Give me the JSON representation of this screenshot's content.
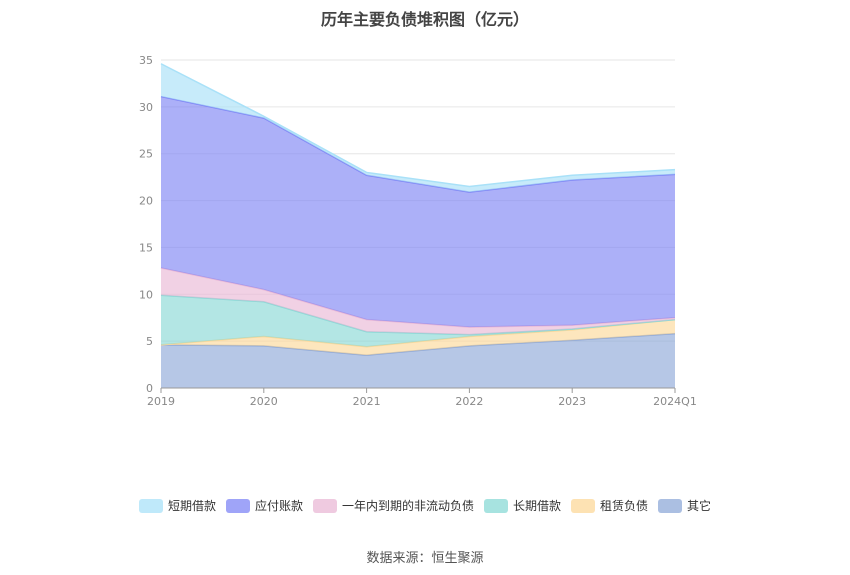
{
  "chart_data": {
    "type": "area",
    "stacked": true,
    "title": "历年主要负债堆积图（亿元）",
    "categories": [
      "2019",
      "2020",
      "2021",
      "2022",
      "2023",
      "2024Q1"
    ],
    "ylim": [
      0,
      35
    ],
    "yticks": [
      0,
      5,
      10,
      15,
      20,
      25,
      30,
      35
    ],
    "grid": true,
    "legend_position": "bottom",
    "series": [
      {
        "name": "其它",
        "color": "#8fa9d8",
        "values": [
          4.6,
          4.5,
          3.5,
          4.5,
          5.1,
          5.8
        ]
      },
      {
        "name": "租赁负债",
        "color": "#fcd89a",
        "values": [
          0.0,
          1.0,
          0.9,
          1.0,
          1.1,
          1.5
        ]
      },
      {
        "name": "长期借款",
        "color": "#8ad9d6",
        "values": [
          5.3,
          3.7,
          1.6,
          0.2,
          0.1,
          0.0
        ]
      },
      {
        "name": "一年内到期的非流动负债",
        "color": "#e9b8d6",
        "values": [
          2.9,
          1.3,
          1.3,
          0.8,
          0.4,
          0.2
        ]
      },
      {
        "name": "应付账款",
        "color": "#7f85f5",
        "values": [
          18.3,
          18.3,
          15.4,
          14.4,
          15.5,
          15.3
        ]
      },
      {
        "name": "短期借款",
        "color": "#a9e1f8",
        "values": [
          3.5,
          0.2,
          0.3,
          0.6,
          0.5,
          0.5
        ]
      }
    ]
  },
  "legend_order": [
    "短期借款",
    "应付账款",
    "一年内到期的非流动负债",
    "长期借款",
    "租赁负债",
    "其它"
  ],
  "source": "数据来源：恒生聚源"
}
